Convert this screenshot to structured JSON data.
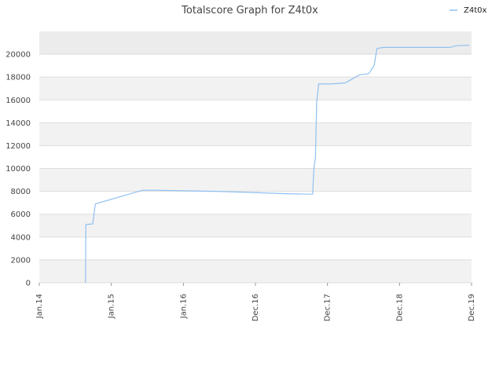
{
  "chart_data": {
    "type": "line",
    "title": "Totalscore Graph for Z4t0x",
    "xlabel": "",
    "ylabel": "",
    "legend_position": "top-right",
    "grid": true,
    "x_tick_labels": [
      "Jan.14",
      "Jan.15",
      "Jan.16",
      "Dec.16",
      "Dec.17",
      "Dec.18",
      "Dec.19"
    ],
    "y_ticks": [
      0,
      2000,
      4000,
      6000,
      8000,
      10000,
      12000,
      14000,
      16000,
      18000,
      20000
    ],
    "ylim": [
      0,
      22000
    ],
    "xlim": [
      "2014-01-01",
      "2019-12-01"
    ],
    "series": [
      {
        "name": "Z4t0x",
        "color": "#90c0f0",
        "points": [
          {
            "x": "2014-08-20",
            "y": 0
          },
          {
            "x": "2014-08-21",
            "y": 4500
          },
          {
            "x": "2014-08-22",
            "y": 5100
          },
          {
            "x": "2014-09-25",
            "y": 5150
          },
          {
            "x": "2014-10-08",
            "y": 6900
          },
          {
            "x": "2015-06-01",
            "y": 8100
          },
          {
            "x": "2015-08-01",
            "y": 8100
          },
          {
            "x": "2016-06-01",
            "y": 8000
          },
          {
            "x": "2016-12-01",
            "y": 7900
          },
          {
            "x": "2017-05-01",
            "y": 7800
          },
          {
            "x": "2017-09-28",
            "y": 7750
          },
          {
            "x": "2017-10-04",
            "y": 10000
          },
          {
            "x": "2017-10-12",
            "y": 11000
          },
          {
            "x": "2017-10-18",
            "y": 15800
          },
          {
            "x": "2017-10-28",
            "y": 17400
          },
          {
            "x": "2018-01-01",
            "y": 17400
          },
          {
            "x": "2018-03-10",
            "y": 17500
          },
          {
            "x": "2018-05-20",
            "y": 18200
          },
          {
            "x": "2018-07-05",
            "y": 18300
          },
          {
            "x": "2018-08-01",
            "y": 19000
          },
          {
            "x": "2018-08-15",
            "y": 20500
          },
          {
            "x": "2018-09-15",
            "y": 20600
          },
          {
            "x": "2019-02-01",
            "y": 20600
          },
          {
            "x": "2019-08-15",
            "y": 20600
          },
          {
            "x": "2019-09-15",
            "y": 20750
          },
          {
            "x": "2019-11-20",
            "y": 20800
          }
        ]
      }
    ]
  }
}
